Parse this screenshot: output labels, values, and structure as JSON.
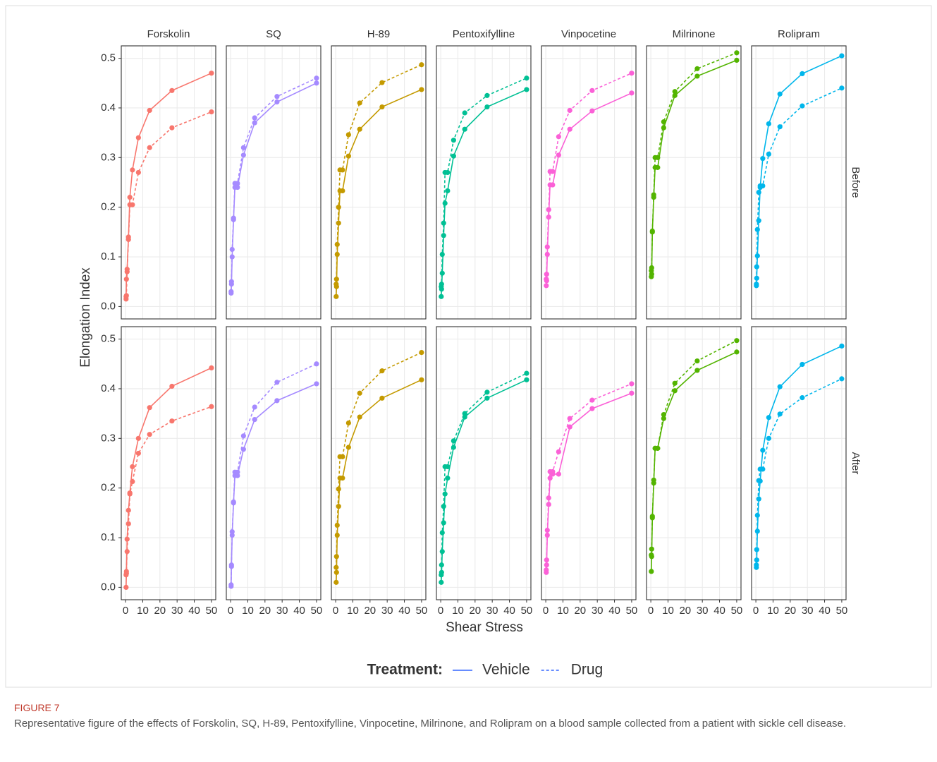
{
  "chart_data": {
    "type": "line",
    "x_label": "Shear Stress",
    "y_label": "Elongation Index",
    "legend_title": "Treatment:",
    "legend_color": "#3366FF",
    "columns": [
      {
        "name": "Forskolin",
        "color": "#F8766D"
      },
      {
        "name": "SQ",
        "color": "#A58AFF"
      },
      {
        "name": "H-89",
        "color": "#C49A00"
      },
      {
        "name": "Pentoxifylline",
        "color": "#00C094"
      },
      {
        "name": "Vinpocetine",
        "color": "#FB61D7"
      },
      {
        "name": "Milrinone",
        "color": "#53B400"
      },
      {
        "name": "Rolipram",
        "color": "#00B6EB"
      }
    ],
    "rows": [
      "Before",
      "After"
    ],
    "series": [
      {
        "name": "Vehicle",
        "dash": "solid"
      },
      {
        "name": "Drug",
        "dash": "dashed"
      }
    ],
    "x": [
      0.3,
      0.5,
      0.9,
      1.7,
      2.5,
      4,
      7.5,
      14,
      27,
      50
    ],
    "xlim": [
      -2.5,
      52.5
    ],
    "xticks": [
      0,
      10,
      20,
      30,
      40,
      50
    ],
    "ylim": [
      -0.025,
      0.525
    ],
    "yticks": [
      {
        "value": 0,
        "label": "0.0"
      },
      0.1,
      0.2,
      0.3,
      0.4,
      0.5
    ],
    "grid": true,
    "panels": [
      [
        [
          [
            0.015,
            0.055,
            0.075,
            0.14,
            0.22,
            0.275,
            0.34,
            0.395,
            0.435,
            0.47
          ],
          [
            0.02,
            0.022,
            0.07,
            0.135,
            0.205,
            0.205,
            0.27,
            0.32,
            0.36,
            0.392
          ]
        ],
        [
          [
            0.027,
            0.045,
            0.1,
            0.175,
            0.24,
            0.24,
            0.305,
            0.37,
            0.412,
            0.45
          ],
          [
            0.03,
            0.05,
            0.115,
            0.178,
            0.248,
            0.248,
            0.32,
            0.38,
            0.423,
            0.46
          ]
        ],
        [
          [
            0.02,
            0.04,
            0.105,
            0.168,
            0.233,
            0.233,
            0.303,
            0.357,
            0.402,
            0.437
          ],
          [
            0.045,
            0.055,
            0.125,
            0.2,
            0.275,
            0.275,
            0.346,
            0.41,
            0.451,
            0.487
          ]
        ],
        [
          [
            0.02,
            0.035,
            0.067,
            0.143,
            0.208,
            0.233,
            0.303,
            0.357,
            0.402,
            0.437
          ],
          [
            0.04,
            0.045,
            0.105,
            0.168,
            0.27,
            0.27,
            0.335,
            0.39,
            0.425,
            0.46
          ]
        ],
        [
          [
            0.042,
            0.052,
            0.105,
            0.18,
            0.245,
            0.245,
            0.305,
            0.357,
            0.394,
            0.43
          ],
          [
            0.055,
            0.065,
            0.12,
            0.195,
            0.272,
            0.272,
            0.342,
            0.395,
            0.435,
            0.47
          ]
        ],
        [
          [
            0.06,
            0.065,
            0.15,
            0.22,
            0.28,
            0.28,
            0.36,
            0.425,
            0.464,
            0.496
          ],
          [
            0.072,
            0.078,
            0.152,
            0.225,
            0.3,
            0.3,
            0.372,
            0.433,
            0.479,
            0.511
          ]
        ],
        [
          [
            0.042,
            0.057,
            0.102,
            0.173,
            0.24,
            0.298,
            0.368,
            0.428,
            0.469,
            0.505
          ],
          [
            0.045,
            0.08,
            0.155,
            0.23,
            0.243,
            0.243,
            0.307,
            0.362,
            0.404,
            0.44
          ]
        ]
      ],
      [
        [
          [
            0.0,
            0.028,
            0.097,
            0.155,
            0.19,
            0.243,
            0.3,
            0.362,
            0.405,
            0.442
          ],
          [
            0.025,
            0.032,
            0.072,
            0.128,
            0.188,
            0.213,
            0.27,
            0.308,
            0.335,
            0.364
          ]
        ],
        [
          [
            0.002,
            0.045,
            0.105,
            0.17,
            0.225,
            0.225,
            0.278,
            0.338,
            0.376,
            0.41
          ],
          [
            0.005,
            0.042,
            0.112,
            0.172,
            0.232,
            0.232,
            0.305,
            0.363,
            0.413,
            0.45
          ]
        ],
        [
          [
            0.01,
            0.03,
            0.105,
            0.163,
            0.22,
            0.22,
            0.282,
            0.343,
            0.381,
            0.418
          ],
          [
            0.04,
            0.062,
            0.125,
            0.198,
            0.263,
            0.263,
            0.331,
            0.391,
            0.436,
            0.473
          ]
        ],
        [
          [
            0.01,
            0.03,
            0.072,
            0.13,
            0.188,
            0.22,
            0.282,
            0.343,
            0.381,
            0.418
          ],
          [
            0.025,
            0.045,
            0.11,
            0.163,
            0.243,
            0.243,
            0.295,
            0.35,
            0.393,
            0.431
          ]
        ],
        [
          [
            0.03,
            0.045,
            0.105,
            0.167,
            0.22,
            0.228,
            0.228,
            0.323,
            0.36,
            0.391
          ],
          [
            0.035,
            0.055,
            0.115,
            0.18,
            0.233,
            0.233,
            0.273,
            0.34,
            0.377,
            0.41
          ]
        ],
        [
          [
            0.032,
            0.062,
            0.14,
            0.21,
            0.28,
            0.28,
            0.34,
            0.396,
            0.437,
            0.474
          ],
          [
            0.065,
            0.077,
            0.143,
            0.216,
            0.28,
            0.28,
            0.348,
            0.411,
            0.456,
            0.497
          ]
        ],
        [
          [
            0.04,
            0.055,
            0.113,
            0.178,
            0.214,
            0.276,
            0.342,
            0.404,
            0.449,
            0.486
          ],
          [
            0.045,
            0.076,
            0.145,
            0.215,
            0.238,
            0.238,
            0.3,
            0.349,
            0.382,
            0.42
          ]
        ]
      ]
    ]
  },
  "caption": {
    "label": "FIGURE 7",
    "text": "Representative figure of the effects of Forskolin, SQ, H-89, Pentoxifylline, Vinpocetine, Milrinone, and Rolipram on a blood sample collected from a patient with sickle cell disease."
  }
}
